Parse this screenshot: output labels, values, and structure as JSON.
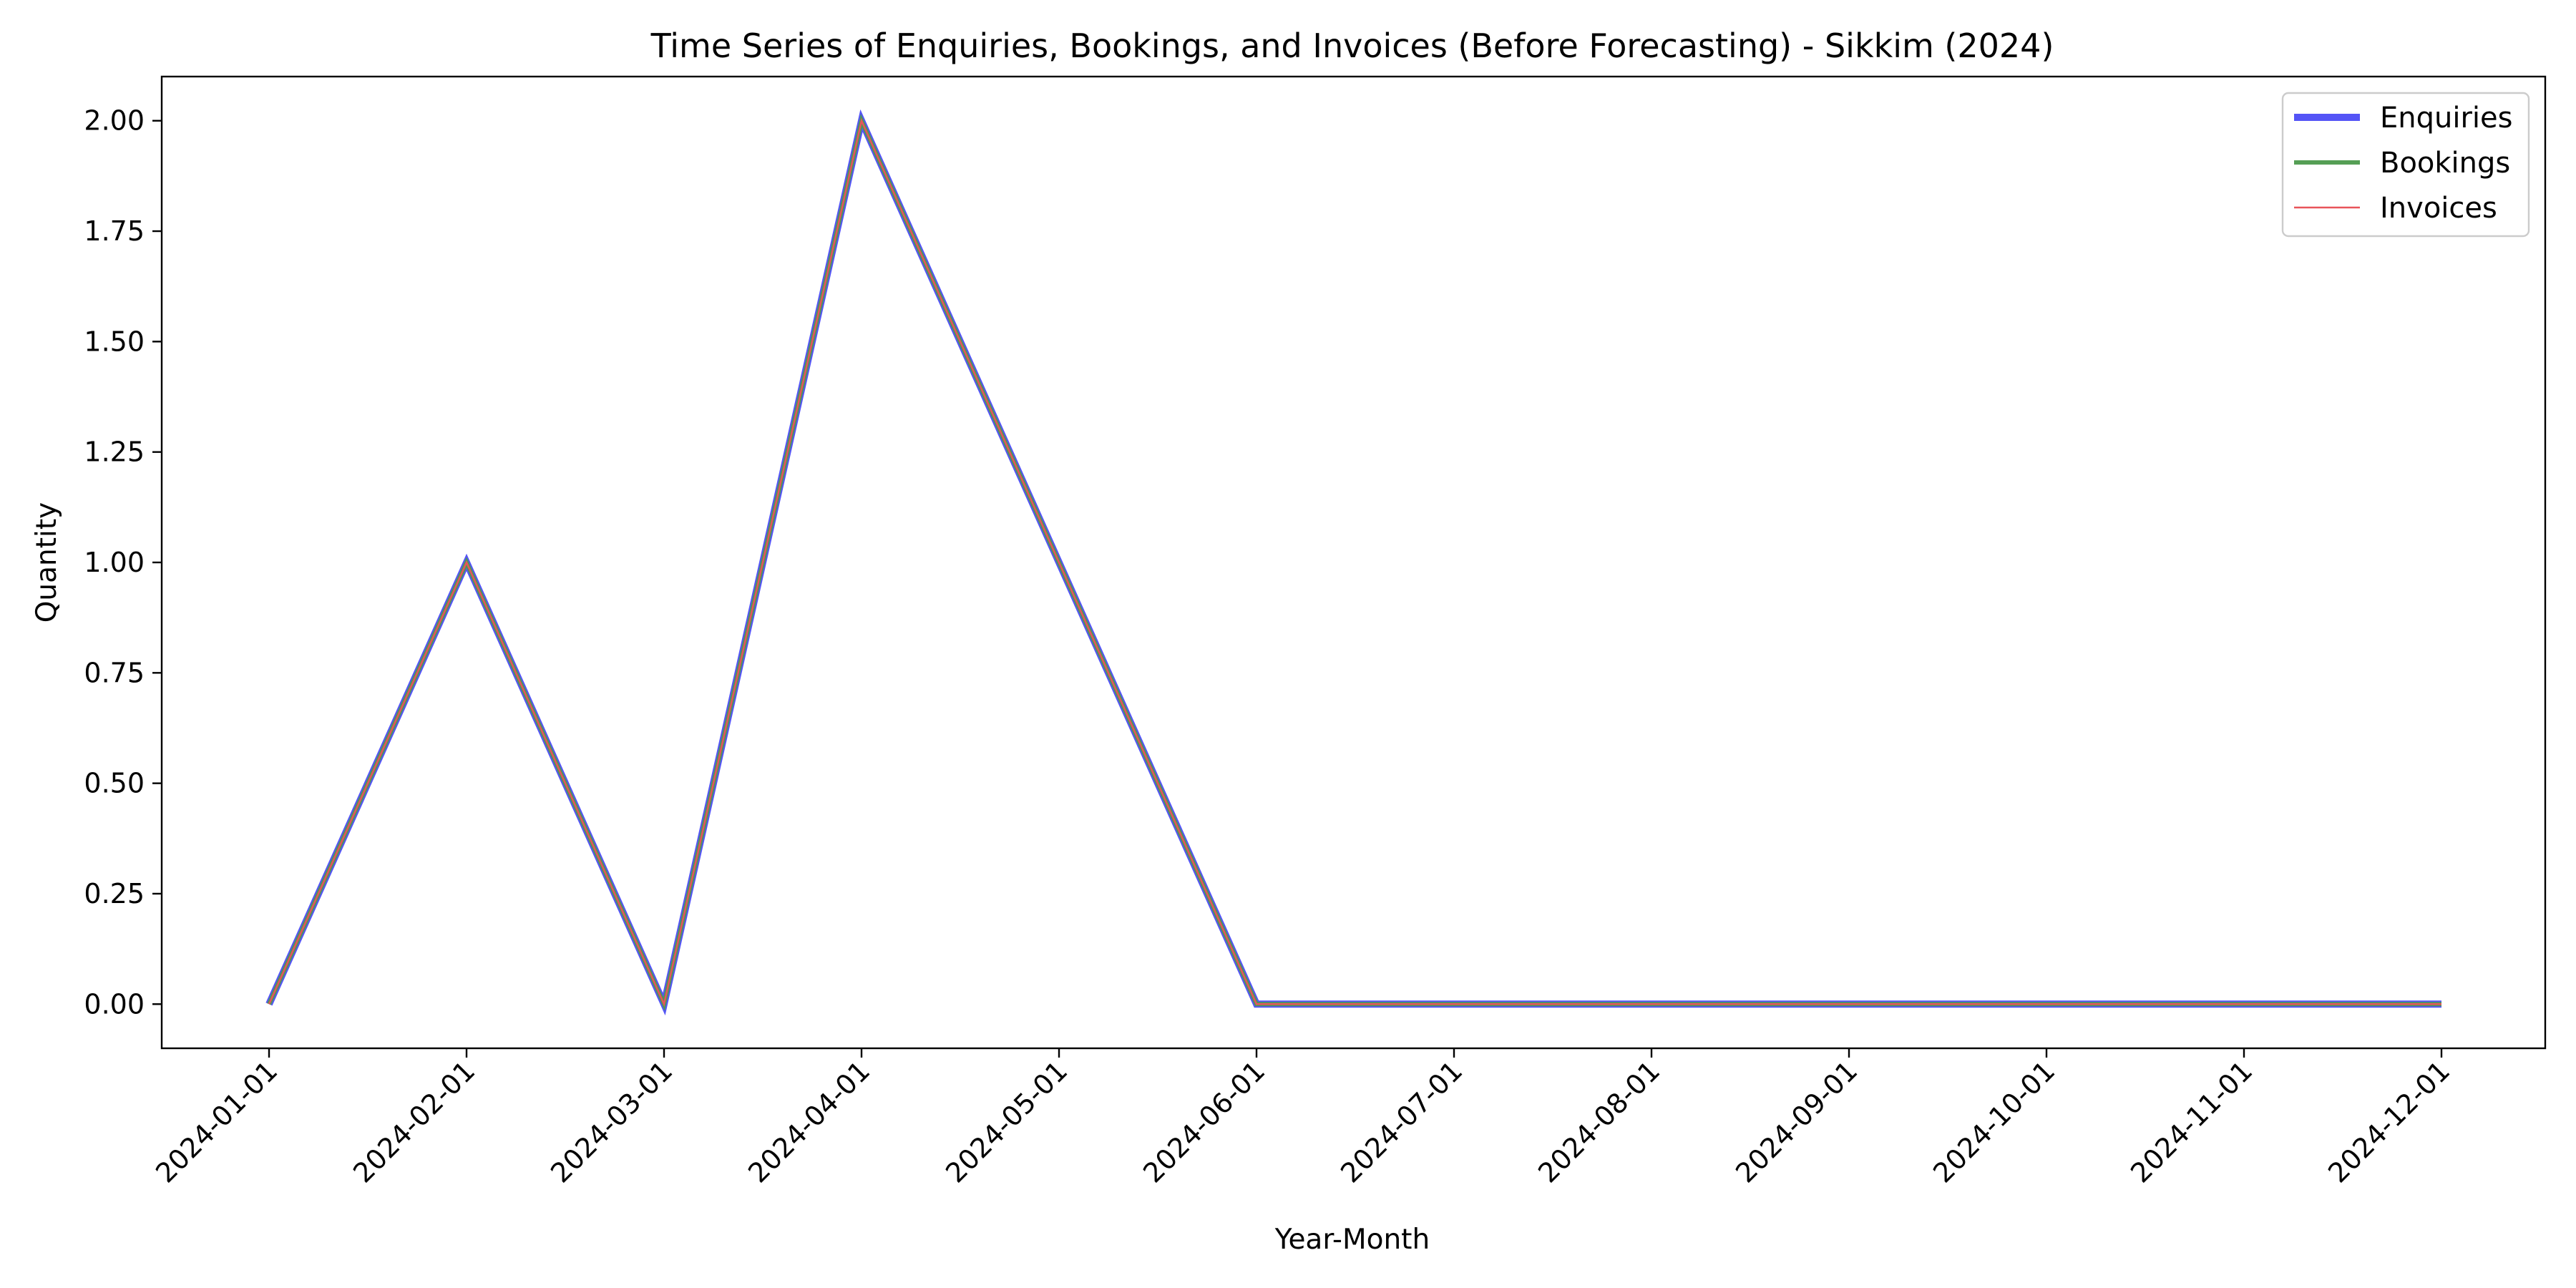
{
  "chart_data": {
    "type": "line",
    "title": "Time Series of Enquiries, Bookings, and Invoices (Before Forecasting) - Sikkim (2024)",
    "xlabel": "Year-Month",
    "ylabel": "Quantity",
    "x": [
      "2024-01-01",
      "2024-02-01",
      "2024-03-01",
      "2024-04-01",
      "2024-05-01",
      "2024-06-01",
      "2024-07-01",
      "2024-08-01",
      "2024-09-01",
      "2024-10-01",
      "2024-11-01",
      "2024-12-01"
    ],
    "yticks": [
      "0.00",
      "0.25",
      "0.50",
      "0.75",
      "1.00",
      "1.25",
      "1.50",
      "1.75",
      "2.00"
    ],
    "ylim": [
      -0.1,
      2.1
    ],
    "grid": false,
    "legend_position": "top-right",
    "series": [
      {
        "name": "Enquiries",
        "color": "#4b4bf5",
        "values": [
          0,
          1,
          0,
          2,
          1,
          0,
          0,
          0,
          0,
          0,
          0,
          0
        ]
      },
      {
        "name": "Bookings",
        "color": "#4c9a4c",
        "values": [
          0,
          1,
          0,
          2,
          1,
          0,
          0,
          0,
          0,
          0,
          0,
          0
        ]
      },
      {
        "name": "Invoices",
        "color": "#e8545a",
        "values": [
          0,
          1,
          0,
          2,
          1,
          0,
          0,
          0,
          0,
          0,
          0,
          0
        ]
      }
    ]
  }
}
